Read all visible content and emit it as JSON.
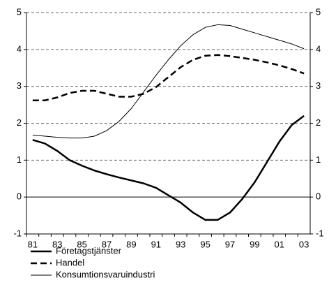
{
  "chart_data": {
    "type": "line",
    "categories": [
      "81",
      null,
      "83",
      null,
      "85",
      null,
      "87",
      null,
      "89",
      null,
      "91",
      null,
      "93",
      null,
      "95",
      null,
      "97",
      null,
      "99",
      null,
      "01",
      null,
      "03"
    ],
    "series": [
      {
        "name": "Företagstjänster",
        "color": "#000000",
        "width": 2.5,
        "dash": "none",
        "values": [
          1.55,
          1.45,
          1.25,
          1.0,
          0.85,
          0.72,
          0.62,
          0.53,
          0.45,
          0.37,
          0.25,
          0.05,
          -0.15,
          -0.42,
          -0.62,
          -0.62,
          -0.42,
          -0.05,
          0.4,
          0.95,
          1.5,
          1.95,
          2.2
        ]
      },
      {
        "name": "Handel",
        "color": "#000000",
        "width": 2.5,
        "dash": "9 5",
        "values": [
          2.62,
          2.62,
          2.7,
          2.82,
          2.88,
          2.88,
          2.8,
          2.72,
          2.72,
          2.8,
          2.98,
          3.25,
          3.52,
          3.72,
          3.83,
          3.85,
          3.82,
          3.77,
          3.72,
          3.65,
          3.57,
          3.47,
          3.35
        ]
      },
      {
        "name": "Konsumtionsvaruindustri",
        "color": "#000000",
        "width": 1,
        "dash": "none",
        "values": [
          1.68,
          1.65,
          1.62,
          1.6,
          1.6,
          1.65,
          1.8,
          2.05,
          2.4,
          2.85,
          3.3,
          3.72,
          4.1,
          4.4,
          4.6,
          4.67,
          4.65,
          4.55,
          4.45,
          4.35,
          4.25,
          4.15,
          4.02
        ]
      }
    ],
    "ylim": [
      -1,
      5
    ],
    "yticks": [
      -1,
      0,
      1,
      2,
      3,
      4,
      5
    ],
    "y2lim": [
      -1,
      5
    ],
    "y2ticks": [
      -1,
      0,
      1,
      2,
      3,
      4,
      5
    ],
    "grid": true,
    "legend": "bottom"
  }
}
